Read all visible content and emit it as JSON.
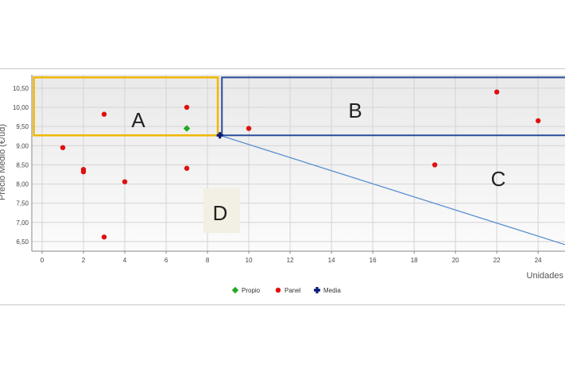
{
  "chart_data": {
    "type": "scatter",
    "xlabel": "Unidades",
    "ylabel": "Precio Medio (€/ud)",
    "xlim": [
      -0.5,
      25.3
    ],
    "ylim": [
      6.25,
      10.85
    ],
    "grid": true,
    "x_ticks": [
      "0",
      "2",
      "4",
      "6",
      "8",
      "10",
      "12",
      "14",
      "16",
      "18",
      "20",
      "22",
      "24"
    ],
    "y_ticks": [
      "6,50",
      "7,00",
      "7,50",
      "8,00",
      "8,50",
      "9,00",
      "9,50",
      "10,00",
      "10,50"
    ],
    "series": [
      {
        "name": "Panel",
        "color": "#e01010",
        "marker": "circle",
        "points": [
          {
            "x": 1,
            "y": 8.95
          },
          {
            "x": 2,
            "y": 8.38
          },
          {
            "x": 2,
            "y": 8.32
          },
          {
            "x": 3,
            "y": 9.82
          },
          {
            "x": 3,
            "y": 6.62
          },
          {
            "x": 4,
            "y": 8.06
          },
          {
            "x": 7,
            "y": 10.0
          },
          {
            "x": 7,
            "y": 8.41
          },
          {
            "x": 10,
            "y": 9.45
          },
          {
            "x": 19,
            "y": 8.5
          },
          {
            "x": 22,
            "y": 10.4
          },
          {
            "x": 24,
            "y": 9.65
          }
        ]
      },
      {
        "name": "Propio",
        "color": "#22aa22",
        "marker": "diamond",
        "points": [
          {
            "x": 7,
            "y": 9.45
          }
        ]
      },
      {
        "name": "Media",
        "color": "#0a1a7a",
        "marker": "cross",
        "points": [
          {
            "x": 8.6,
            "y": 9.27
          }
        ]
      }
    ],
    "regions": [
      {
        "label": "A",
        "color": "#f0b800",
        "x": [
          -0.4,
          8.5
        ],
        "y": [
          9.27,
          10.78
        ]
      },
      {
        "label": "B",
        "color": "#2a4c99",
        "x": [
          8.7,
          25.3
        ],
        "y": [
          9.27,
          10.78
        ]
      },
      {
        "label": "C",
        "region": "lower-right"
      },
      {
        "label": "D",
        "region": "lower-left"
      }
    ],
    "trend_line": {
      "color": "#5b8fd0",
      "from": {
        "x": 8.6,
        "y": 9.27
      },
      "to": {
        "x": 25.3,
        "y": 6.42
      }
    },
    "legend": {
      "position": "bottom-center",
      "entries": [
        "Propio",
        "Panel",
        "Media"
      ]
    }
  }
}
